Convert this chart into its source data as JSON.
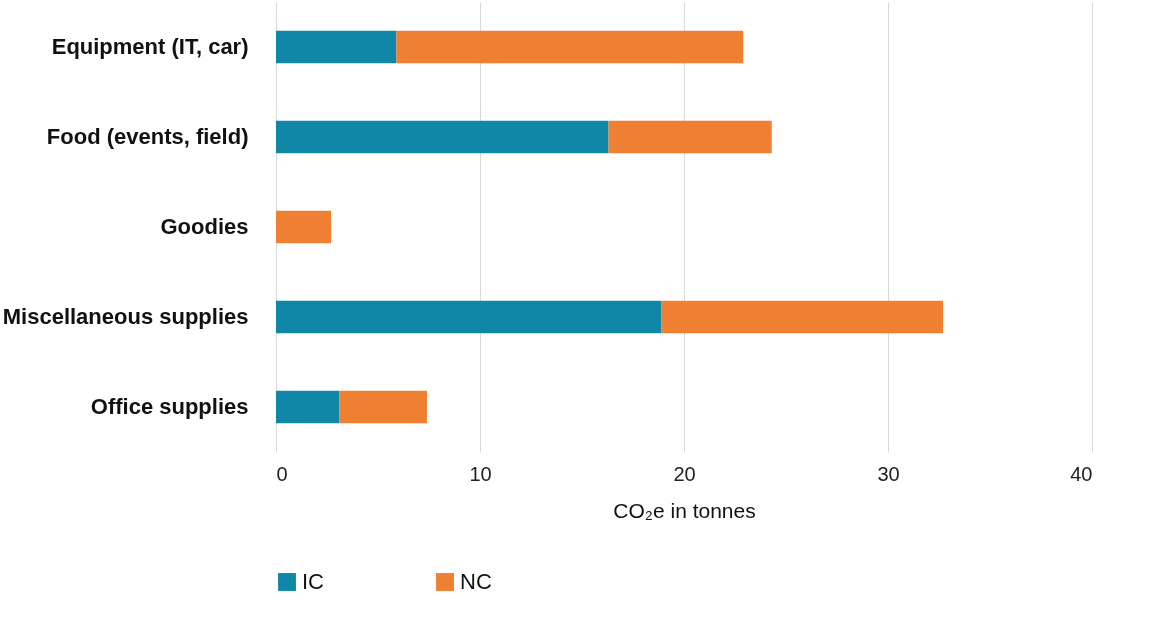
{
  "chart_data": {
    "type": "bar",
    "orientation": "horizontal",
    "stacked": true,
    "xlabel": "CO₂e in tonnes",
    "categories": [
      "Equipment (IT, car)",
      "Food (events, field)",
      "Goodies",
      "Miscellaneous supplies",
      "Office supplies"
    ],
    "series": [
      {
        "name": "IC",
        "color": "#1187a8",
        "values": [
          5.9,
          16.3,
          0,
          18.9,
          3.1
        ]
      },
      {
        "name": "NC",
        "color": "#ee7f33",
        "values": [
          17.0,
          8.0,
          2.7,
          13.8,
          4.3
        ]
      }
    ],
    "xlim": [
      0,
      40
    ],
    "xticks": [
      0,
      10,
      20,
      30,
      40
    ],
    "grid": "x",
    "legend": "bottom"
  }
}
